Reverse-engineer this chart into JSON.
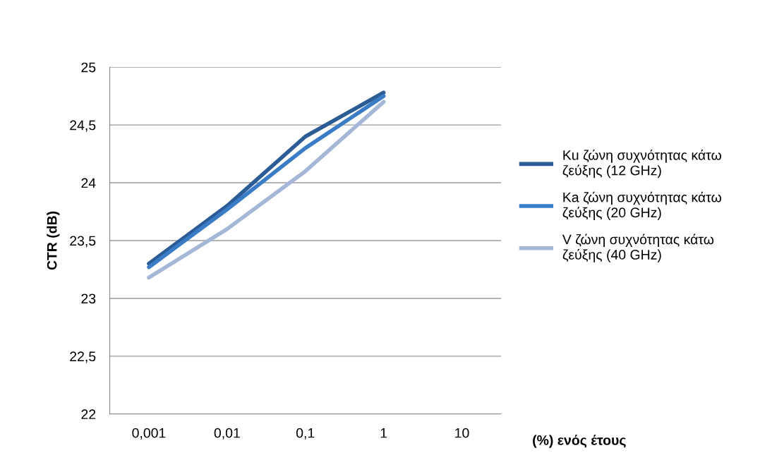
{
  "chart_data": {
    "type": "line",
    "xlabel": "(%) ενός έτους",
    "ylabel": "CTR (dB)",
    "categories": [
      "0,001",
      "0,01",
      "0,1",
      "1",
      "10"
    ],
    "series": [
      {
        "name": "Ku ζώνη συχνότητας κάτω ζεύξης (12 GHz)",
        "color": "#2b5c96",
        "values": [
          23.3,
          23.8,
          24.4,
          24.78,
          null
        ]
      },
      {
        "name": "Ka ζώνη συχνότητας κάτω ζεύξης (20 GHz)",
        "color": "#3b7cc6",
        "values": [
          23.27,
          23.77,
          24.3,
          24.75,
          null
        ]
      },
      {
        "name": "V ζώνη συχνότητας κάτω ζεύξης (40 GHz)",
        "color": "#a4b7d7",
        "values": [
          23.18,
          23.6,
          24.1,
          24.7,
          null
        ]
      }
    ],
    "ylim": [
      22,
      25
    ],
    "yticks": [
      22,
      {
        "value": 22.5,
        "label": "22,5"
      },
      23,
      {
        "value": 23.5,
        "label": "23,5"
      },
      24,
      {
        "value": 24.5,
        "label": "24,5"
      },
      25
    ],
    "grid": "y",
    "legend": "right",
    "marker": "none",
    "line_style": "solid"
  }
}
